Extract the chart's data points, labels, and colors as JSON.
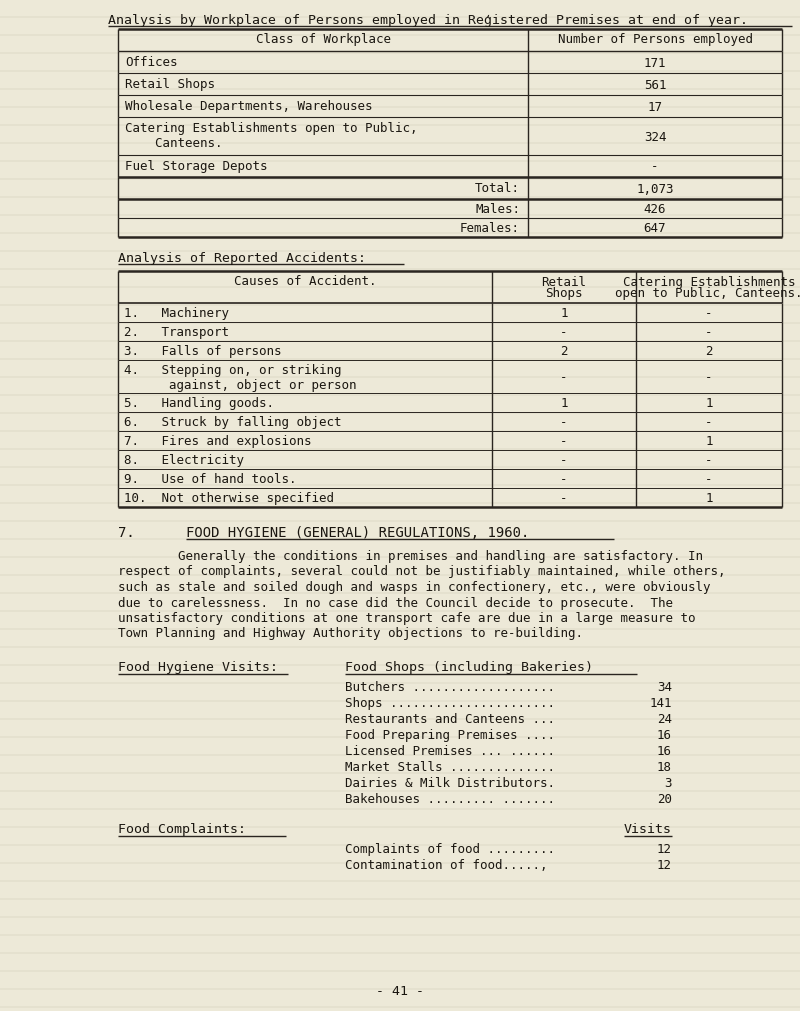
{
  "bg_color": "#ede9d8",
  "left_bg": "#d8d4c4",
  "title": "Analysis by Workplace of Persons employed in Reģistered Premises at end of year.",
  "table1_headers": [
    "Class of Workplace",
    "Number of Persons employed"
  ],
  "table1_rows": [
    [
      "Offices",
      "171"
    ],
    [
      "Retail Shops",
      "561"
    ],
    [
      "Wholesale Departments, Warehouses",
      "17"
    ],
    [
      "Catering Establishments open to Public,\n    Canteens.",
      "324"
    ],
    [
      "Fuel Storage Depots",
      "-"
    ]
  ],
  "table1_total_label": "Total:",
  "table1_total": "1,073",
  "table1_males_label": "Males:",
  "table1_males": "426",
  "table1_females_label": "Females:",
  "table1_females": "647",
  "accidents_title": "Analysis of Reported Accidents:",
  "accidents_col1": "Causes of Accident.",
  "accidents_col2a": "Retail",
  "accidents_col2b": "Shops",
  "accidents_col3a": "Catering Establishments",
  "accidents_col3b": "open to Public, Canteens.",
  "accidents_rows": [
    [
      "1.   Machinery",
      "1",
      "-"
    ],
    [
      "2.   Transport",
      "-",
      "-"
    ],
    [
      "3.   Falls of persons",
      "2",
      "2"
    ],
    [
      "4.   Stepping on, or striking\n      against, object or person",
      "-",
      "-"
    ],
    [
      "5.   Handling goods.",
      "1",
      "1"
    ],
    [
      "6.   Struck by falling object",
      "-",
      "-"
    ],
    [
      "7.   Fires and explosions",
      "-",
      "1"
    ],
    [
      "8.   Electricity",
      "-",
      "-"
    ],
    [
      "9.   Use of hand tools.",
      "-",
      "-"
    ],
    [
      "10.  Not otherwise specified",
      "-",
      "1"
    ]
  ],
  "section7_num": "7.",
  "section7_title": "FOOD HYGIENE (GENERAL) REGULATIONS, 1960.",
  "paragraph_lines": [
    "        Generally the conditions in premises and handling are satisfactory. In",
    "respect of complaints, several could not be justifiably maintained, while others,",
    "such as stale and soiled dough and wasps in confectionery, etc., were obviously",
    "due to carelessness.  In no case did the Council decide to prosecute.  The",
    "unsatisfactory conditions at one transport cafe are due in a large measure to",
    "Town Planning and Highway Authority objections to re-building."
  ],
  "food_hygiene_label": "Food Hygiene Visits:",
  "food_shops_header": "Food Shops (including Bakeries)",
  "food_shops_items": [
    [
      "Butchers ...................",
      "34"
    ],
    [
      "Shops ......................",
      "141"
    ],
    [
      "Restaurants and Canteens ...",
      "24"
    ],
    [
      "Food Preparing Premises ....",
      "16"
    ],
    [
      "Licensed Premises ... ......",
      "16"
    ],
    [
      "Market Stalls ..............",
      "18"
    ],
    [
      "Dairies & Milk Distributors.",
      "3"
    ],
    [
      "Bakehouses ......... .......",
      "20"
    ]
  ],
  "food_complaints_label": "Food Complaints:",
  "food_complaints_col_header": "Visits",
  "food_complaints_items": [
    [
      "Complaints of food .........",
      "12"
    ],
    [
      "Contamination of food.....,",
      "12"
    ]
  ],
  "page_number": "- 41 -",
  "text_color": "#1a1610"
}
